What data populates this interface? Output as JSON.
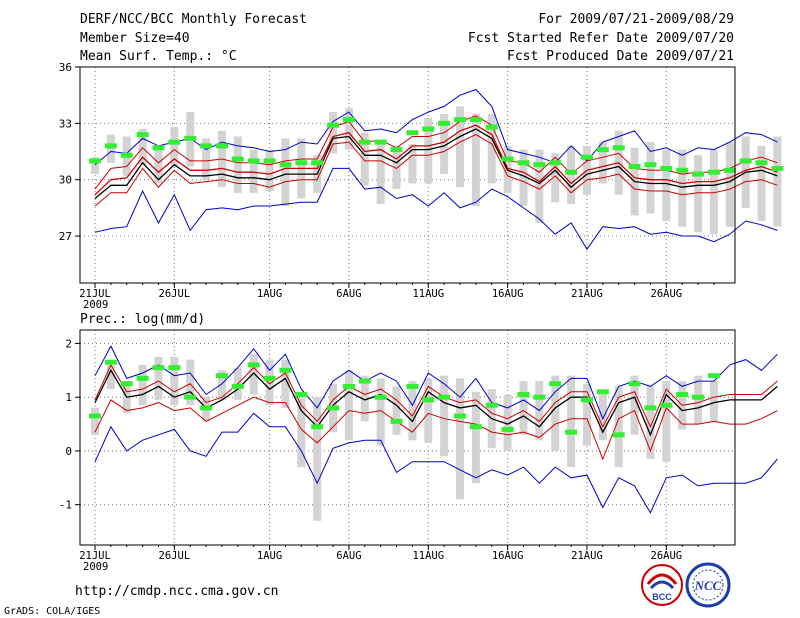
{
  "header": {
    "left": [
      "DERF/NCC/BCC Monthly Forecast",
      "Member Size=40",
      "Mean Surf. Temp.: °C"
    ],
    "right": [
      "For 2009/07/21-2009/08/29",
      "Fcst Started Refer Date 2009/07/20",
      "Fcst Produced Date 2009/07/21"
    ]
  },
  "footer": {
    "url": "http://cmdp.ncc.cma.gov.cn",
    "credit": "GrADS: COLA/IGES",
    "logo1_text": "BCC",
    "logo2_text": "NCC"
  },
  "colors": {
    "ensemble_max_min": "#0000cc",
    "ensemble_spread": "#cc0000",
    "ensemble_mean": "#000000",
    "observed": "#33ee33",
    "range_bars": "#d3d3d3",
    "grid": "#777777"
  },
  "chart_data": [
    {
      "type": "line",
      "title": "Mean Surf. Temp.: °C",
      "x_tick_labels": [
        "21JUL",
        "26JUL",
        "1AUG",
        "6AUG",
        "11AUG",
        "16AUG",
        "21AUG",
        "26AUG"
      ],
      "x_tick_days": [
        0,
        5,
        11,
        16,
        21,
        26,
        31,
        36
      ],
      "year_label": "2009",
      "ylim": [
        24.5,
        36
      ],
      "yticks": [
        27,
        30,
        33,
        36
      ],
      "series": [
        {
          "name": "max",
          "values": [
            30.8,
            31.5,
            31.4,
            32.2,
            31.8,
            32.0,
            32.2,
            31.6,
            32.0,
            31.8,
            31.7,
            31.5,
            31.6,
            32.0,
            31.9,
            33.1,
            33.6,
            32.6,
            32.7,
            32.5,
            33.2,
            33.6,
            33.9,
            34.5,
            34.8,
            33.9,
            31.6,
            31.4,
            31.2,
            30.9,
            31.8,
            31.0,
            32.0,
            32.3,
            32.6,
            31.5,
            31.7,
            31.3,
            31.7,
            31.6,
            32.0,
            32.5,
            32.4,
            32.0
          ]
        },
        {
          "name": "spread_upper",
          "values": [
            29.5,
            30.6,
            30.7,
            31.7,
            30.9,
            31.6,
            31.0,
            31.0,
            31.1,
            30.9,
            30.9,
            30.8,
            31.0,
            31.1,
            31.1,
            32.8,
            33.1,
            32.0,
            32.1,
            31.7,
            32.3,
            32.3,
            32.5,
            33.1,
            33.4,
            32.9,
            31.0,
            30.9,
            30.4,
            31.2,
            30.3,
            31.0,
            31.2,
            31.4,
            30.6,
            30.5,
            30.5,
            30.3,
            30.4,
            30.4,
            30.6,
            31.0,
            31.2,
            30.9
          ]
        },
        {
          "name": "mean_upper",
          "values": [
            29.2,
            30.0,
            30.1,
            31.2,
            30.4,
            31.1,
            30.5,
            30.5,
            30.6,
            30.4,
            30.4,
            30.3,
            30.6,
            30.6,
            30.6,
            32.3,
            32.5,
            31.5,
            31.6,
            31.1,
            31.8,
            31.8,
            32.0,
            32.6,
            32.9,
            32.4,
            30.6,
            30.4,
            29.9,
            30.7,
            29.8,
            30.5,
            30.7,
            30.9,
            30.1,
            30.0,
            30.0,
            29.8,
            29.9,
            29.9,
            30.1,
            30.5,
            30.7,
            30.4
          ]
        },
        {
          "name": "mean",
          "values": [
            29.0,
            29.7,
            29.7,
            30.9,
            30.0,
            30.8,
            30.2,
            30.2,
            30.3,
            30.1,
            30.1,
            30.0,
            30.3,
            30.3,
            30.3,
            32.2,
            32.3,
            31.3,
            31.3,
            30.9,
            31.6,
            31.6,
            31.8,
            32.3,
            32.7,
            32.2,
            30.5,
            30.2,
            29.8,
            30.5,
            29.6,
            30.3,
            30.5,
            30.7,
            29.9,
            29.8,
            29.8,
            29.6,
            29.7,
            29.7,
            29.9,
            30.4,
            30.5,
            30.2
          ]
        },
        {
          "name": "spread_lower",
          "values": [
            28.6,
            29.3,
            29.3,
            30.6,
            29.6,
            30.5,
            29.8,
            29.9,
            30.0,
            29.8,
            29.8,
            29.6,
            29.9,
            30.0,
            30.0,
            31.9,
            32.0,
            31.0,
            31.0,
            30.6,
            31.3,
            31.3,
            31.5,
            32.0,
            32.4,
            31.9,
            30.2,
            29.9,
            29.5,
            30.2,
            29.3,
            30.0,
            30.1,
            30.3,
            29.5,
            29.4,
            29.4,
            29.2,
            29.3,
            29.3,
            29.5,
            29.9,
            30.0,
            29.7
          ]
        },
        {
          "name": "min",
          "values": [
            27.2,
            27.4,
            27.5,
            29.4,
            27.7,
            29.2,
            27.3,
            28.4,
            28.5,
            28.4,
            28.6,
            28.6,
            28.7,
            28.8,
            28.8,
            30.6,
            30.6,
            29.5,
            29.6,
            29.0,
            29.2,
            28.6,
            29.3,
            28.5,
            28.8,
            29.5,
            29.1,
            28.5,
            27.9,
            27.1,
            27.7,
            26.3,
            27.5,
            27.4,
            27.5,
            27.1,
            27.2,
            27.0,
            27.0,
            26.7,
            27.1,
            27.8,
            27.6,
            27.3
          ]
        },
        {
          "name": "observed",
          "values": [
            31.0,
            31.8,
            31.3,
            32.4,
            31.7,
            32.0,
            32.2,
            31.8,
            31.8,
            31.1,
            31.0,
            31.0,
            30.8,
            30.9,
            30.9,
            32.9,
            33.2,
            32.0,
            32.0,
            31.6,
            32.5,
            32.7,
            33.0,
            33.2,
            33.2,
            32.8,
            31.1,
            30.9,
            30.8,
            30.9,
            30.4,
            31.2,
            31.6,
            31.7,
            30.7,
            30.8,
            30.6,
            30.5,
            30.3,
            30.4,
            30.5,
            31.0,
            30.9,
            30.6
          ]
        },
        {
          "name": "range_high",
          "values": [
            31.2,
            32.4,
            32.3,
            32.7,
            31.8,
            32.8,
            33.6,
            32.2,
            32.6,
            32.3,
            31.6,
            31.6,
            32.2,
            32.2,
            31.3,
            33.6,
            33.8,
            32.5,
            32.1,
            31.8,
            31.9,
            33.3,
            33.5,
            33.9,
            33.5,
            33.5,
            31.8,
            31.6,
            31.6,
            31.4,
            31.8,
            31.8,
            32.0,
            32.6,
            31.7,
            32.0,
            31.6,
            31.6,
            31.3,
            31.6,
            32.0,
            32.3,
            31.8,
            32.3
          ]
        },
        {
          "name": "range_low",
          "values": [
            30.3,
            30.9,
            30.2,
            30.8,
            29.8,
            30.7,
            30.7,
            30.0,
            29.6,
            29.3,
            29.3,
            29.4,
            28.6,
            29.0,
            29.3,
            31.4,
            31.6,
            29.7,
            28.7,
            29.5,
            29.8,
            29.8,
            30.3,
            29.6,
            28.6,
            29.8,
            29.3,
            28.6,
            27.7,
            28.8,
            28.7,
            29.2,
            29.8,
            29.2,
            28.1,
            28.2,
            27.8,
            27.5,
            27.2,
            27.1,
            27.5,
            28.5,
            27.8,
            27.5
          ]
        }
      ]
    },
    {
      "type": "line",
      "title": "Prec.: log(mm/d)",
      "x_tick_labels": [
        "21JUL",
        "26JUL",
        "1AUG",
        "6AUG",
        "11AUG",
        "16AUG",
        "21AUG",
        "26AUG"
      ],
      "x_tick_days": [
        0,
        5,
        11,
        16,
        21,
        26,
        31,
        36
      ],
      "year_label": "2009",
      "ylim": [
        -1.75,
        2.25
      ],
      "yticks": [
        -1,
        0,
        1,
        2
      ],
      "series": [
        {
          "name": "max",
          "values": [
            1.4,
            1.95,
            1.35,
            1.45,
            1.6,
            1.4,
            1.45,
            1.05,
            1.25,
            1.55,
            1.9,
            1.5,
            1.8,
            1.15,
            0.8,
            1.3,
            1.5,
            1.3,
            1.45,
            1.3,
            0.85,
            1.45,
            1.25,
            1.0,
            1.35,
            0.9,
            0.8,
            0.95,
            0.75,
            1.1,
            1.35,
            1.35,
            0.6,
            1.2,
            1.3,
            1.2,
            1.4,
            1.2,
            1.3,
            1.3,
            1.6,
            1.7,
            1.5,
            1.8
          ]
        },
        {
          "name": "spread_upper",
          "values": [
            0.95,
            1.6,
            1.1,
            1.15,
            1.3,
            1.1,
            1.25,
            0.9,
            1.0,
            1.25,
            1.55,
            1.25,
            1.45,
            0.85,
            0.55,
            0.95,
            1.2,
            1.05,
            1.15,
            0.95,
            0.65,
            1.2,
            1.0,
            0.9,
            0.95,
            0.7,
            0.6,
            0.75,
            0.55,
            0.9,
            1.1,
            1.1,
            0.45,
            1.0,
            1.1,
            0.45,
            1.15,
            0.85,
            0.9,
            1.0,
            1.05,
            1.05,
            1.05,
            1.3
          ]
        },
        {
          "name": "mean",
          "values": [
            0.9,
            1.5,
            1.0,
            1.05,
            1.2,
            1.0,
            1.1,
            0.8,
            0.95,
            1.15,
            1.45,
            1.15,
            1.35,
            0.75,
            0.45,
            0.85,
            1.1,
            0.95,
            1.05,
            0.85,
            0.55,
            1.1,
            0.9,
            0.8,
            0.85,
            0.6,
            0.5,
            0.65,
            0.45,
            0.8,
            1.0,
            1.0,
            0.35,
            0.9,
            1.0,
            0.3,
            1.05,
            0.75,
            0.8,
            0.9,
            0.95,
            0.95,
            0.95,
            1.2
          ]
        },
        {
          "name": "spread_lower",
          "values": [
            0.35,
            0.95,
            0.75,
            0.8,
            0.9,
            0.75,
            0.8,
            0.55,
            0.7,
            0.85,
            1.0,
            0.9,
            0.9,
            0.4,
            0.15,
            0.45,
            0.75,
            0.7,
            0.75,
            0.55,
            0.35,
            0.7,
            0.6,
            0.55,
            0.5,
            0.35,
            0.3,
            0.35,
            0.25,
            0.5,
            0.6,
            0.6,
            -0.15,
            0.6,
            0.75,
            0.0,
            0.8,
            0.5,
            0.5,
            0.55,
            0.5,
            0.5,
            0.6,
            0.75
          ]
        },
        {
          "name": "min",
          "values": [
            -0.2,
            0.45,
            0.0,
            0.2,
            0.3,
            0.4,
            0.0,
            -0.1,
            0.35,
            0.35,
            0.7,
            0.45,
            0.45,
            0.0,
            -0.6,
            0.05,
            0.15,
            0.2,
            0.2,
            -0.4,
            -0.2,
            -0.2,
            -0.2,
            -0.35,
            -0.5,
            -0.35,
            -0.45,
            -0.3,
            -0.6,
            -0.3,
            -0.5,
            -0.45,
            -1.05,
            -0.5,
            -0.65,
            -1.15,
            -0.5,
            -0.45,
            -0.65,
            -0.6,
            -0.6,
            -0.6,
            -0.5,
            -0.15
          ]
        },
        {
          "name": "observed",
          "values": [
            0.65,
            1.65,
            1.25,
            1.35,
            1.55,
            1.55,
            1.0,
            0.8,
            1.4,
            1.2,
            1.6,
            1.35,
            1.5,
            1.05,
            0.45,
            0.8,
            1.2,
            1.3,
            1.0,
            0.55,
            1.2,
            0.95,
            1.0,
            0.65,
            0.45,
            0.85,
            0.4,
            1.05,
            1.0,
            1.25,
            0.35,
            0.95,
            1.1,
            0.3,
            1.25,
            0.8,
            0.85,
            1.05,
            1.0,
            1.4
          ]
        },
        {
          "name": "range_high",
          "values": [
            0.8,
            1.6,
            1.3,
            1.6,
            1.75,
            1.75,
            1.7,
            1.0,
            1.5,
            1.55,
            1.8,
            1.7,
            1.7,
            1.1,
            1.0,
            1.25,
            1.5,
            1.4,
            1.35,
            1.2,
            1.3,
            1.35,
            1.4,
            1.35,
            1.1,
            1.15,
            1.05,
            1.3,
            1.3,
            1.4,
            1.4,
            1.25,
            1.05,
            1.2,
            1.4,
            1.2,
            1.3,
            1.3,
            1.4,
            1.3
          ]
        },
        {
          "name": "range_low",
          "values": [
            0.3,
            1.15,
            0.7,
            0.85,
            0.95,
            0.85,
            0.85,
            0.55,
            0.95,
            0.95,
            1.05,
            0.85,
            0.8,
            -0.3,
            -1.3,
            0.35,
            0.2,
            0.55,
            0.1,
            0.3,
            0.2,
            0.15,
            -0.1,
            -0.9,
            -0.6,
            0.05,
            0.0,
            0.3,
            0.2,
            0.0,
            -0.3,
            0.1,
            0.2,
            -0.3,
            0.3,
            -0.15,
            -0.2,
            0.4,
            0.5,
            0.55
          ]
        }
      ]
    }
  ]
}
